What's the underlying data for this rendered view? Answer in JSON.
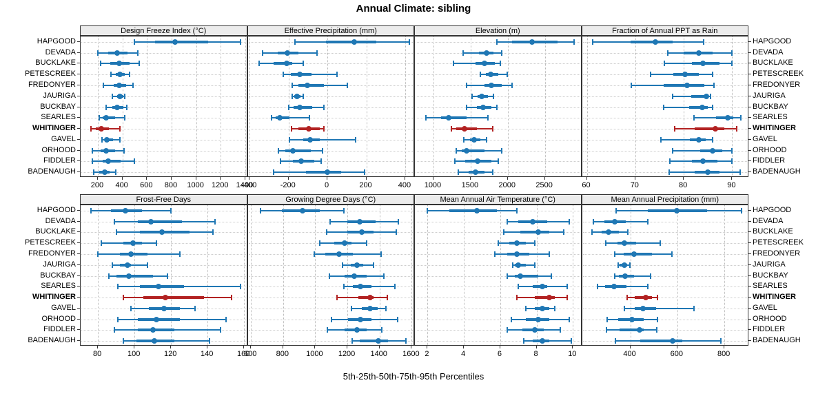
{
  "title": "Annual Climate: sibling",
  "xlabel": "5th-25th-50th-75th-95th Percentiles",
  "colors": {
    "series": "#1f77b4",
    "highlight": "#b22222",
    "strip_bg": "#ececec",
    "grid": "#b8b8b8"
  },
  "sites": [
    "HAPGOOD",
    "DEVADA",
    "BUCKLAKE",
    "PETESCREEK",
    "FREDONYER",
    "JAURIGA",
    "BUCKBAY",
    "SEARLES",
    "WHITINGER",
    "GAVEL",
    "ORHOOD",
    "FIDDLER",
    "BADENAUGH"
  ],
  "highlight_site": "WHITINGER",
  "chart_data": {
    "type": "percentile-dotplot",
    "percentiles": [
      "5th",
      "25th",
      "50th",
      "75th",
      "95th"
    ],
    "legend_note": "whisker 5th-95th, thick bar 25th-75th, dot median",
    "panels": [
      {
        "title": "Design Freeze Index (°C)",
        "grid_row": 0,
        "grid_col": 0,
        "axis": {
          "min": 60,
          "max": 1420,
          "ticks": [
            200,
            400,
            600,
            800,
            1000,
            1200,
            1400
          ]
        },
        "values": {
          "HAPGOOD": [
            500,
            665,
            827,
            1095,
            1360
          ],
          "DEVADA": [
            200,
            285,
            360,
            440,
            525
          ],
          "BUCKLAKE": [
            225,
            300,
            375,
            460,
            535
          ],
          "PETESCREEK": [
            305,
            345,
            380,
            420,
            460
          ],
          "FREDONYER": [
            245,
            330,
            375,
            430,
            487
          ],
          "JAURIGA": [
            317,
            355,
            380,
            406,
            421
          ],
          "BUCKBAY": [
            270,
            317,
            360,
            408,
            434
          ],
          "SEARLES": [
            210,
            238,
            270,
            340,
            417
          ],
          "WHITINGER": [
            143,
            185,
            228,
            292,
            380
          ],
          "GAVEL": [
            232,
            255,
            275,
            323,
            380
          ],
          "ORHOOD": [
            153,
            223,
            270,
            340,
            411
          ],
          "FIDDLER": [
            156,
            238,
            285,
            387,
            496
          ],
          "BADENAUGH": [
            164,
            213,
            255,
            298,
            346
          ]
        }
      },
      {
        "title": "Effective Precipitation (mm)",
        "grid_row": 0,
        "grid_col": 1,
        "axis": {
          "min": -410,
          "max": 450,
          "ticks": [
            -400,
            -200,
            0,
            200,
            400
          ]
        },
        "values": {
          "HAPGOOD": [
            -167,
            -8,
            137,
            253,
            420
          ],
          "DEVADA": [
            -333,
            -256,
            -205,
            -149,
            -52
          ],
          "BUCKLAKE": [
            -353,
            -276,
            -211,
            -182,
            -125
          ],
          "PETESCREEK": [
            -227,
            -188,
            -144,
            -81,
            48
          ],
          "FREDONYER": [
            -182,
            -149,
            -105,
            -17,
            102
          ],
          "JAURIGA": [
            -182,
            -170,
            -156,
            -138,
            -126
          ],
          "BUCKBAY": [
            -199,
            -173,
            -144,
            -79,
            -17
          ],
          "SEARLES": [
            -288,
            -268,
            -244,
            -196,
            -91
          ],
          "WHITINGER": [
            -185,
            -149,
            -97,
            -40,
            -17
          ],
          "GAVEL": [
            -194,
            -126,
            -90,
            -40,
            145
          ],
          "ORHOOD": [
            -252,
            -215,
            -176,
            -87,
            -26
          ],
          "FIDDLER": [
            -241,
            -176,
            -135,
            -67,
            -32
          ],
          "BADENAUGH": [
            -276,
            -109,
            -2,
            72,
            192
          ]
        }
      },
      {
        "title": "Elevation (m)",
        "grid_row": 0,
        "grid_col": 2,
        "axis": {
          "min": 750,
          "max": 3000,
          "ticks": [
            1000,
            1500,
            2000,
            2500
          ]
        },
        "values": {
          "HAPGOOD": [
            1858,
            2059,
            2331,
            2670,
            2892
          ],
          "DEVADA": [
            1395,
            1611,
            1713,
            1812,
            1920
          ],
          "BUCKLAKE": [
            1271,
            1565,
            1688,
            1827,
            1905
          ],
          "PETESCREEK": [
            1627,
            1704,
            1775,
            1873,
            1997
          ],
          "FREDONYER": [
            1442,
            1688,
            1781,
            1920,
            2059
          ],
          "JAURIGA": [
            1519,
            1595,
            1651,
            1734,
            1812
          ],
          "BUCKBAY": [
            1442,
            1581,
            1673,
            1781,
            1858
          ],
          "SEARLES": [
            901,
            1102,
            1201,
            1442,
            1734
          ],
          "WHITINGER": [
            1241,
            1303,
            1417,
            1581,
            1796
          ],
          "GAVEL": [
            1410,
            1488,
            1549,
            1627,
            1719
          ],
          "ORHOOD": [
            1303,
            1380,
            1447,
            1688,
            1920
          ],
          "FIDDLER": [
            1287,
            1426,
            1590,
            1781,
            1873
          ],
          "BADENAUGH": [
            1333,
            1472,
            1571,
            1688,
            1796
          ]
        }
      },
      {
        "title": "Fraction of Annual PPT as Rain",
        "grid_row": 0,
        "grid_col": 3,
        "axis": {
          "min": 59,
          "max": 93.5,
          "ticks": [
            60,
            70,
            80,
            90
          ]
        },
        "values": {
          "HAPGOOD": [
            61.2,
            69.1,
            74.1,
            77.7,
            84.1
          ],
          "DEVADA": [
            76.7,
            80.0,
            83.1,
            86.0,
            90.0
          ],
          "BUCKLAKE": [
            76.0,
            81.7,
            84.0,
            87.4,
            90.0
          ],
          "PETESCREEK": [
            73.1,
            77.9,
            80.3,
            83.1,
            86.0
          ],
          "FREDONYER": [
            69.2,
            75.8,
            80.7,
            84.3,
            86.2
          ],
          "JAURIGA": [
            77.7,
            81.6,
            84.7,
            85.1,
            85.6
          ],
          "BUCKBAY": [
            75.9,
            81.1,
            83.8,
            85.0,
            85.9
          ],
          "SEARLES": [
            82.1,
            86.7,
            89.1,
            90.3,
            91.8
          ],
          "WHITINGER": [
            78.1,
            82.2,
            86.5,
            88.4,
            90.9
          ],
          "GAVEL": [
            75.3,
            81.2,
            83.1,
            84.6,
            86.0
          ],
          "ORHOOD": [
            77.7,
            83.4,
            86.0,
            87.9,
            90.0
          ],
          "FIDDLER": [
            77.2,
            81.7,
            84.0,
            87.0,
            90.0
          ],
          "BADENAUGH": [
            77.0,
            82.2,
            85.0,
            87.4,
            91.6
          ]
        }
      },
      {
        "title": "Frost-Free Days",
        "grid_row": 1,
        "grid_col": 0,
        "axis": {
          "min": 70.5,
          "max": 162,
          "ticks": [
            80,
            100,
            120,
            140,
            160
          ]
        },
        "values": {
          "HAPGOOD": [
            76,
            87,
            95,
            104,
            120
          ],
          "DEVADA": [
            89,
            102,
            109,
            126,
            144
          ],
          "BUCKLAKE": [
            90,
            103,
            115,
            130,
            143
          ],
          "PETESCREEK": [
            82,
            94,
            99,
            104,
            112
          ],
          "FREDONYER": [
            80,
            92,
            98,
            107,
            125
          ],
          "JAURIGA": [
            88,
            92,
            96,
            98,
            107
          ],
          "BUCKBAY": [
            86,
            90,
            97,
            110,
            118
          ],
          "SEARLES": [
            91,
            103,
            113,
            127,
            158
          ],
          "WHITINGER": [
            94,
            105,
            117,
            138,
            153
          ],
          "GAVEL": [
            98,
            108,
            116,
            125,
            133
          ],
          "ORHOOD": [
            91,
            102,
            112,
            125,
            150
          ],
          "FIDDLER": [
            89,
            102,
            110,
            122,
            147
          ],
          "BADENAUGH": [
            94,
            101,
            111,
            122,
            141
          ]
        }
      },
      {
        "title": "Growing Degree Days (°C)",
        "grid_row": 1,
        "grid_col": 1,
        "axis": {
          "min": 580,
          "max": 1620,
          "ticks": [
            600,
            800,
            1000,
            1200,
            1400,
            1600
          ]
        },
        "values": {
          "HAPGOOD": [
            660,
            794,
            922,
            1028,
            1177
          ],
          "DEVADA": [
            1092,
            1199,
            1277,
            1376,
            1518
          ],
          "BUCKLAKE": [
            1071,
            1199,
            1291,
            1362,
            1503
          ],
          "PETESCREEK": [
            1028,
            1120,
            1182,
            1227,
            1319
          ],
          "FREDONYER": [
            993,
            1064,
            1149,
            1234,
            1411
          ],
          "JAURIGA": [
            1170,
            1220,
            1258,
            1298,
            1362
          ],
          "BUCKBAY": [
            1088,
            1182,
            1241,
            1319,
            1426
          ],
          "SEARLES": [
            1177,
            1234,
            1281,
            1348,
            1494
          ],
          "WHITINGER": [
            1135,
            1269,
            1340,
            1362,
            1447
          ],
          "GAVEL": [
            1227,
            1291,
            1343,
            1390,
            1440
          ],
          "ORHOOD": [
            1099,
            1206,
            1281,
            1348,
            1511
          ],
          "FIDDLER": [
            1074,
            1184,
            1258,
            1319,
            1414
          ],
          "BADENAUGH": [
            1230,
            1277,
            1394,
            1451,
            1565
          ]
        }
      },
      {
        "title": "Mean Annual Air Temperature (°C)",
        "grid_row": 1,
        "grid_col": 2,
        "axis": {
          "min": 1.3,
          "max": 10.5,
          "ticks": [
            2,
            4,
            6,
            8,
            10
          ]
        },
        "values": {
          "HAPGOOD": [
            2.0,
            3.2,
            4.7,
            5.8,
            6.9
          ],
          "DEVADA": [
            6.4,
            7.0,
            7.8,
            8.6,
            9.8
          ],
          "BUCKLAKE": [
            6.2,
            7.1,
            8.1,
            8.7,
            9.5
          ],
          "PETESCREEK": [
            5.9,
            6.5,
            6.9,
            7.4,
            7.9
          ],
          "FREDONYER": [
            5.7,
            6.4,
            6.9,
            7.6,
            8.7
          ],
          "JAURIGA": [
            6.7,
            6.8,
            7.0,
            7.4,
            7.9
          ],
          "BUCKBAY": [
            6.4,
            6.8,
            7.1,
            8.1,
            8.8
          ],
          "SEARLES": [
            7.0,
            7.8,
            8.3,
            8.6,
            9.7
          ],
          "WHITINGER": [
            6.9,
            7.9,
            8.7,
            9.0,
            9.7
          ],
          "GAVEL": [
            7.4,
            7.9,
            8.3,
            8.7,
            9.0
          ],
          "ORHOOD": [
            6.6,
            7.4,
            8.1,
            8.7,
            9.8
          ],
          "FIDDLER": [
            6.4,
            7.2,
            7.9,
            8.4,
            9.3
          ],
          "BADENAUGH": [
            7.3,
            7.8,
            8.3,
            8.7,
            9.9
          ]
        }
      },
      {
        "title": "Mean Annual Precipitation (mm)",
        "grid_row": 1,
        "grid_col": 3,
        "axis": {
          "min": 195,
          "max": 905,
          "ticks": [
            400,
            600,
            800
          ]
        },
        "values": {
          "HAPGOOD": [
            341,
            474,
            597,
            726,
            874
          ],
          "DEVADA": [
            242,
            291,
            334,
            380,
            474
          ],
          "BUCKLAKE": [
            237,
            277,
            308,
            351,
            390
          ],
          "PETESCREEK": [
            297,
            345,
            374,
            425,
            528
          ],
          "FREDONYER": [
            333,
            371,
            416,
            493,
            576
          ],
          "JAURIGA": [
            348,
            356,
            374,
            386,
            398
          ],
          "BUCKBAY": [
            333,
            353,
            377,
            416,
            487
          ],
          "SEARLES": [
            262,
            294,
            330,
            383,
            475
          ],
          "WHITINGER": [
            386,
            419,
            466,
            493,
            516
          ],
          "GAVEL": [
            376,
            418,
            455,
            509,
            672
          ],
          "ORHOOD": [
            302,
            349,
            406,
            457,
            517
          ],
          "FIDDLER": [
            299,
            356,
            440,
            457,
            512
          ],
          "BADENAUGH": [
            337,
            442,
            581,
            620,
            786
          ]
        }
      }
    ]
  }
}
